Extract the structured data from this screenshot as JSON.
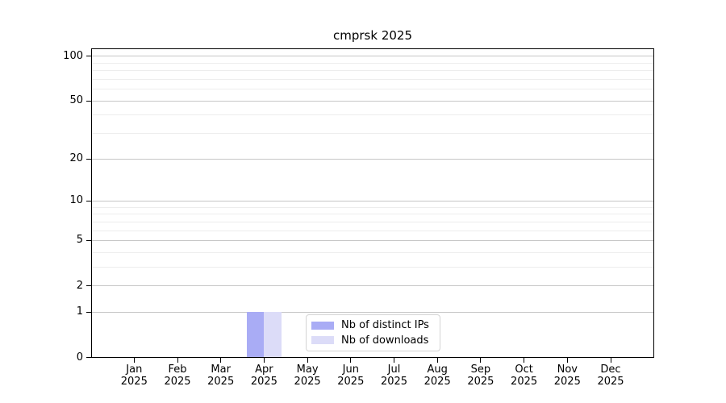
{
  "chart_data": {
    "type": "bar",
    "title": "cmprsk 2025",
    "categories": [
      "Jan 2025",
      "Feb 2025",
      "Mar 2025",
      "Apr 2025",
      "May 2025",
      "Jun 2025",
      "Jul 2025",
      "Aug 2025",
      "Sep 2025",
      "Oct 2025",
      "Nov 2025",
      "Dec 2025"
    ],
    "series": [
      {
        "name": "Nb of distinct IPs",
        "color": "#a9acf5",
        "values": [
          0,
          0,
          0,
          1,
          0,
          0,
          0,
          0,
          0,
          0,
          0,
          0
        ]
      },
      {
        "name": "Nb of downloads",
        "color": "#dcdcf8",
        "values": [
          0,
          0,
          0,
          1,
          0,
          0,
          0,
          0,
          0,
          0,
          0,
          0
        ]
      }
    ],
    "y_scale": "log1p",
    "y_ticks": [
      0,
      1,
      2,
      5,
      10,
      20,
      50,
      100
    ],
    "y_minor_ticks": [
      3,
      4,
      6,
      7,
      8,
      9,
      30,
      40,
      60,
      70,
      80,
      90
    ],
    "ylim": [
      0,
      110
    ],
    "xlabel": "",
    "ylabel": "",
    "grid": "horizontal",
    "legend_position": "bottom-center",
    "colors": {
      "axis": "#000000",
      "major_grid": "#c6c6c6",
      "minor_grid": "#ededed",
      "background": "#ffffff",
      "legend_border": "#d4d4d4"
    }
  }
}
